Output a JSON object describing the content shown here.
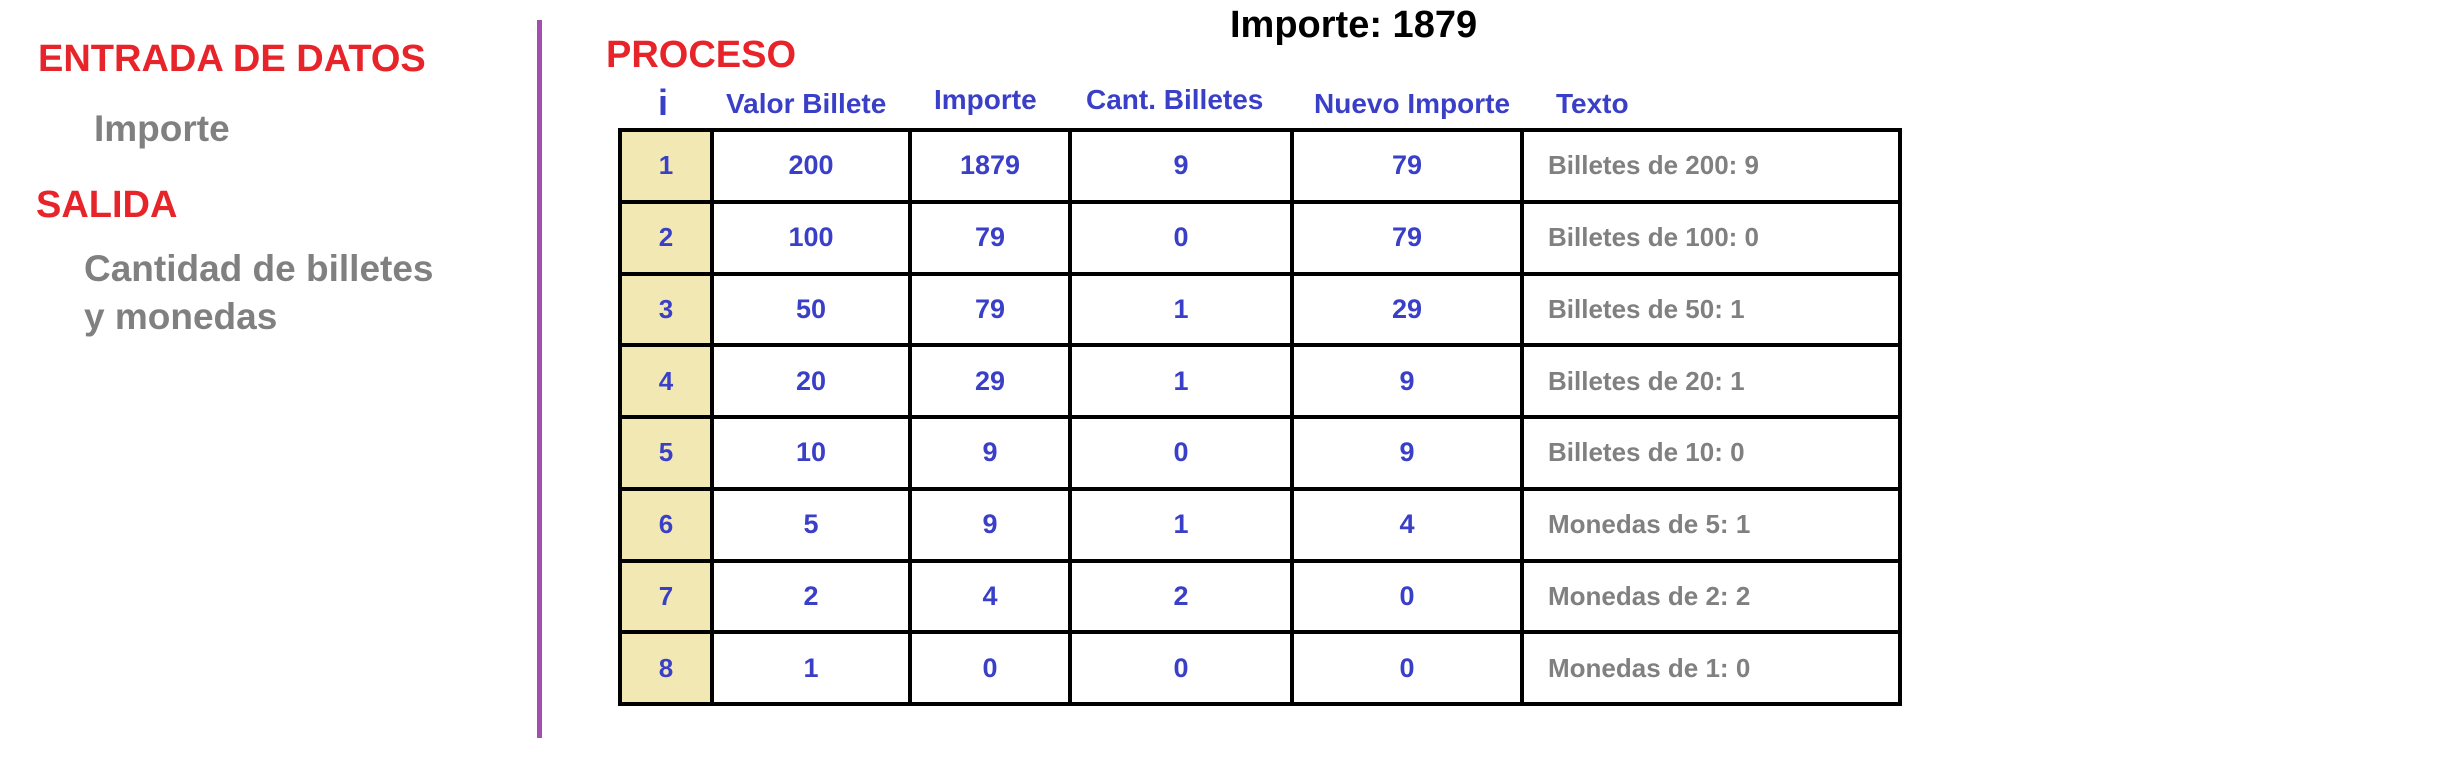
{
  "left": {
    "input_heading": "ENTRADA DE DATOS",
    "input_item": "Importe",
    "output_heading": "SALIDA",
    "output_item_line1": "Cantidad de billetes",
    "output_item_line2": "y monedas"
  },
  "process": {
    "heading": "PROCESO",
    "title": "Importe:  1879",
    "columns": [
      "i",
      "Valor Billete",
      "Importe",
      "Cant. Billetes",
      "Nuevo Importe",
      "Texto"
    ],
    "rows": [
      {
        "i": "1",
        "valor": "200",
        "importe": "1879",
        "cant": "9",
        "nuevo": "79",
        "texto": "Billetes de 200: 9"
      },
      {
        "i": "2",
        "valor": "100",
        "importe": "79",
        "cant": "0",
        "nuevo": "79",
        "texto": "Billetes de 100: 0"
      },
      {
        "i": "3",
        "valor": "50",
        "importe": "79",
        "cant": "1",
        "nuevo": "29",
        "texto": "Billetes de 50: 1"
      },
      {
        "i": "4",
        "valor": "20",
        "importe": "29",
        "cant": "1",
        "nuevo": "9",
        "texto": "Billetes de 20: 1"
      },
      {
        "i": "5",
        "valor": "10",
        "importe": "9",
        "cant": "0",
        "nuevo": "9",
        "texto": "Billetes de 10: 0"
      },
      {
        "i": "6",
        "valor": "5",
        "importe": "9",
        "cant": "1",
        "nuevo": "4",
        "texto": "Monedas de 5: 1"
      },
      {
        "i": "7",
        "valor": "2",
        "importe": "4",
        "cant": "2",
        "nuevo": "0",
        "texto": "Monedas de 2: 2"
      },
      {
        "i": "8",
        "valor": "1",
        "importe": "0",
        "cant": "0",
        "nuevo": "0",
        "texto": "Monedas de 1: 0"
      }
    ]
  },
  "colors": {
    "heading": "#e8242b",
    "label": "#808080",
    "value": "#3a3fc8",
    "index_fill": "#f2e8b4",
    "divider": "#a24fb0"
  }
}
